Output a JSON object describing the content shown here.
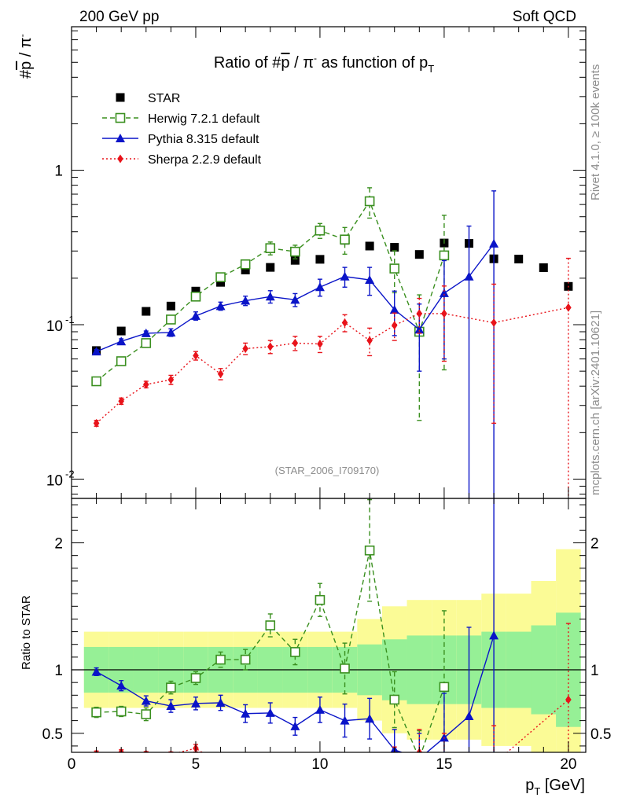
{
  "header": {
    "left": "200 GeV pp",
    "right": "Soft QCD"
  },
  "side": {
    "rivet": "Rivet 4.1.0, ≥ 100k events",
    "mcplots": "mcplots.cern.ch [arXiv:2401.10621]"
  },
  "chart_data": {
    "type": "scatter",
    "title": "Ratio of #p̄ / π⁻ as function of p_T",
    "analysis_tag": "(STAR_2006_I709170)",
    "xlabel": "p_T [GeV]",
    "ylabel_top": "#p̄ / π⁻",
    "ylabel_ratio": "Ratio to STAR",
    "xlim": [
      0,
      20.7
    ],
    "ylim_top": [
      0.0075,
      8.5
    ],
    "ylim_ratio": [
      0.35,
      2.35
    ],
    "yscale_top": "log",
    "x_ticks": [
      "0",
      "5",
      "10",
      "15",
      "20"
    ],
    "y_ticks_top": [
      "10^-2",
      "10^-1",
      "1"
    ],
    "y_ticks_ratio": [
      "0.5",
      "1",
      "2"
    ],
    "x": [
      1,
      2,
      3,
      4,
      5,
      6,
      7,
      8,
      9,
      10,
      11,
      12,
      13,
      14,
      15,
      16,
      17,
      18,
      19,
      20
    ],
    "series": [
      {
        "name": "STAR",
        "color": "#000000",
        "marker": "filled-square",
        "x": [
          1,
          2,
          3,
          4,
          5,
          6,
          7,
          8,
          9,
          10,
          11,
          12,
          13,
          14,
          15,
          16,
          17,
          18,
          19,
          20
        ],
        "values": [
          0.068,
          0.091,
          0.122,
          0.132,
          0.165,
          0.188,
          0.226,
          0.235,
          0.261,
          0.265,
          0.352,
          0.323,
          0.317,
          0.285,
          0.338,
          0.336,
          0.267,
          0.266,
          0.234,
          0.177
        ],
        "band_inner": [
          0.18,
          0.18,
          0.18,
          0.18,
          0.18,
          0.18,
          0.18,
          0.18,
          0.18,
          0.18,
          0.18,
          0.2,
          0.24,
          0.27,
          0.27,
          0.27,
          0.3,
          0.3,
          0.35,
          0.45
        ],
        "band_outer": [
          0.3,
          0.3,
          0.3,
          0.3,
          0.3,
          0.3,
          0.3,
          0.3,
          0.3,
          0.3,
          0.3,
          0.4,
          0.5,
          0.55,
          0.55,
          0.55,
          0.6,
          0.6,
          0.7,
          0.95
        ]
      },
      {
        "name": "Herwig 7.2.1 default",
        "color": "#3a8f1f",
        "marker": "open-square",
        "line": "dashed",
        "x": [
          1,
          2,
          3,
          4,
          5,
          6,
          7,
          8,
          9,
          10,
          11,
          12,
          13,
          14,
          15
        ],
        "values": [
          0.043,
          0.058,
          0.076,
          0.108,
          0.152,
          0.203,
          0.246,
          0.313,
          0.297,
          0.407,
          0.356,
          0.63,
          0.231,
          0.09,
          0.281
        ],
        "err": [
          0.0015,
          0.002,
          0.004,
          0.005,
          0.007,
          0.012,
          0.015,
          0.03,
          0.03,
          0.045,
          0.07,
          0.14,
          0.07,
          0.066,
          0.23
        ],
        "ratio": [
          0.665,
          0.672,
          0.65,
          0.86,
          0.935,
          1.08,
          1.08,
          1.35,
          1.14,
          1.55,
          1.01,
          1.94,
          0.765,
          0.3,
          0.865
        ],
        "ratio_err": [
          0.04,
          0.04,
          0.05,
          0.05,
          0.05,
          0.06,
          0.08,
          0.09,
          0.1,
          0.13,
          0.2,
          0.4,
          0.22,
          0.22,
          0.6
        ]
      },
      {
        "name": "Pythia 8.315 default",
        "color": "#0a14c8",
        "marker": "filled-triangle",
        "line": "solid",
        "x": [
          1,
          2,
          3,
          4,
          5,
          6,
          7,
          8,
          9,
          10,
          11,
          12,
          13,
          14,
          15,
          16,
          17
        ],
        "values": [
          0.067,
          0.078,
          0.088,
          0.089,
          0.114,
          0.132,
          0.143,
          0.152,
          0.145,
          0.175,
          0.205,
          0.195,
          0.125,
          0.093,
          0.16,
          0.205,
          0.335
        ],
        "err": [
          0.002,
          0.003,
          0.003,
          0.005,
          0.007,
          0.008,
          0.01,
          0.014,
          0.014,
          0.022,
          0.03,
          0.04,
          0.04,
          0.043,
          0.1,
          0.23,
          0.4
        ],
        "ratio": [
          0.985,
          0.875,
          0.755,
          0.715,
          0.735,
          0.74,
          0.655,
          0.66,
          0.555,
          0.685,
          0.6,
          0.615,
          0.37,
          0.3,
          0.465,
          0.635,
          1.27
        ],
        "ratio_err": [
          0.03,
          0.04,
          0.04,
          0.05,
          0.05,
          0.06,
          0.07,
          0.08,
          0.07,
          0.1,
          0.13,
          0.16,
          0.16,
          0.2,
          0.35,
          0.7,
          1.4
        ]
      },
      {
        "name": "Sherpa 2.2.9 default",
        "color": "#e8131a",
        "marker": "filled-diamond",
        "line": "dotted",
        "x": [
          1,
          2,
          3,
          4,
          5,
          6,
          7,
          8,
          9,
          10,
          11,
          12,
          13,
          14,
          15,
          17,
          20
        ],
        "values": [
          0.023,
          0.032,
          0.041,
          0.044,
          0.063,
          0.048,
          0.07,
          0.072,
          0.076,
          0.075,
          0.103,
          0.079,
          0.099,
          0.118,
          0.118,
          0.103,
          0.129
        ],
        "err": [
          0.001,
          0.0015,
          0.002,
          0.003,
          0.004,
          0.004,
          0.006,
          0.007,
          0.008,
          0.009,
          0.013,
          0.016,
          0.02,
          0.03,
          0.06,
          0.08,
          0.14
        ],
        "ratio": [
          0.34,
          0.35,
          0.336,
          0.333,
          0.382,
          0.255,
          0.31,
          0.306,
          0.291,
          0.283,
          0.293,
          0.245,
          0.312,
          0.35,
          0.3,
          0.26,
          0.765
        ],
        "ratio_err": [
          0.02,
          0.02,
          0.02,
          0.02,
          0.03,
          0.03,
          0.03,
          0.04,
          0.04,
          0.04,
          0.05,
          0.06,
          0.08,
          0.18,
          0.2,
          0.3,
          0.6
        ]
      }
    ]
  }
}
